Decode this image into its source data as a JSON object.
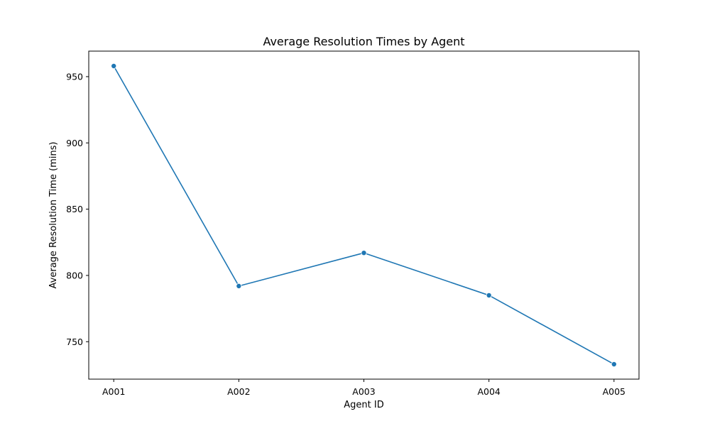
{
  "chart_data": {
    "type": "line",
    "title": "Average Resolution Times by Agent",
    "xlabel": "Agent ID",
    "ylabel": "Average Resolution Time (mins)",
    "categories": [
      "A001",
      "A002",
      "A003",
      "A004",
      "A005"
    ],
    "series": [
      {
        "values": [
          958,
          792,
          817,
          785,
          733
        ]
      }
    ],
    "ylim": [
      721.75,
      969.25
    ],
    "yticks": [
      750,
      800,
      850,
      900,
      950
    ],
    "grid": false,
    "legend": "none",
    "line_color": "#1f77b4",
    "marker": "circle"
  }
}
